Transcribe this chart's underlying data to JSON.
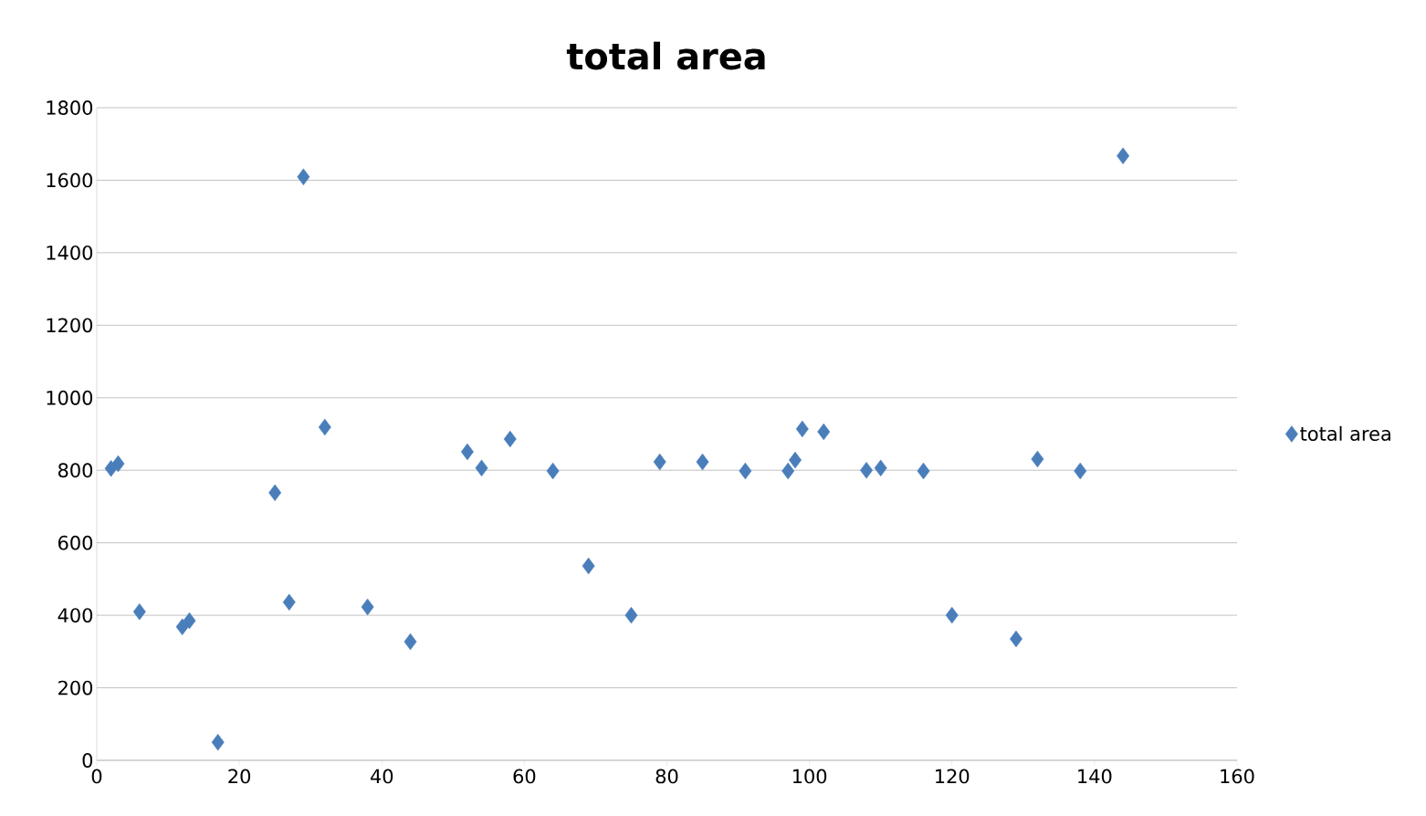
{
  "chart_data": {
    "type": "scatter",
    "title": "total area",
    "x": [
      2,
      3,
      6,
      12,
      13,
      17,
      25,
      27,
      29,
      32,
      38,
      44,
      52,
      54,
      58,
      64,
      69,
      75,
      79,
      85,
      91,
      97,
      98,
      99,
      102,
      108,
      110,
      116,
      120,
      129,
      132,
      138,
      144
    ],
    "series": [
      {
        "name": "total area",
        "color": "#4a7ebb",
        "values": [
          805,
          818,
          410,
          368,
          385,
          50,
          738,
          436,
          1609,
          919,
          423,
          327,
          851,
          806,
          886,
          798,
          536,
          400,
          823,
          823,
          798,
          798,
          828,
          914,
          906,
          800,
          806,
          798,
          400,
          335,
          831,
          798,
          1667
        ]
      }
    ],
    "xlim": [
      0,
      160
    ],
    "xticks": [
      0,
      20,
      40,
      60,
      80,
      100,
      120,
      140,
      160
    ],
    "ylim": [
      0,
      1800
    ],
    "yticks": [
      0,
      200,
      400,
      600,
      800,
      1000,
      1200,
      1400,
      1600,
      1800
    ],
    "grid": "y",
    "legend": "right",
    "marker": "diamond"
  }
}
